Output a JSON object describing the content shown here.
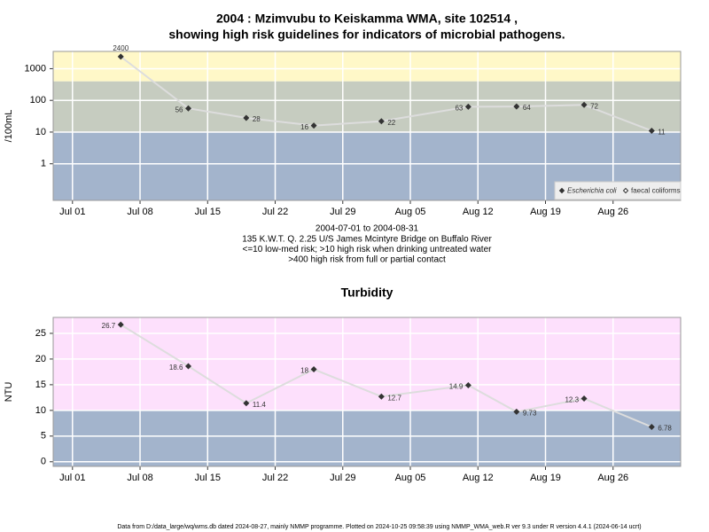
{
  "chart_data": [
    {
      "type": "line",
      "log_y": true,
      "title": [
        "2004 : Mzimvubu to Keiskamma WMA, site 102514 ,",
        "showing high risk guidelines for indicators of microbial pathogens."
      ],
      "ylabel": "/100mL",
      "notes": [
        "2004-07-01 to 2004-08-31",
        "135 K.W.T. Q. 2.25 U/S James Mcintyre Bridge on Buffalo River",
        "<=10 low-med risk; >10 high risk when drinking untreated water",
        ">400 high risk from full or partial contact"
      ],
      "x": [
        "2004-07-06",
        "2004-07-13",
        "2004-07-19",
        "2004-07-26",
        "2004-08-02",
        "2004-08-11",
        "2004-08-16",
        "2004-08-23",
        "2004-08-30"
      ],
      "series": [
        {
          "name": "Escherichia coli",
          "color": "#333333",
          "line_color": "#dddddd",
          "values": [
            2400,
            56,
            28,
            16,
            22,
            63,
            64,
            72,
            11
          ]
        },
        {
          "name": "faecal coliforms",
          "color": "#333333",
          "values": [
            null,
            null,
            null,
            null,
            null,
            null,
            null,
            null,
            null
          ]
        }
      ],
      "thresholds": [
        10,
        400
      ],
      "band_colors": [
        "#a3b4cc",
        "#c6ccc0",
        "#fff8c8"
      ],
      "xlim": [
        "2004-06-29",
        "2004-09-02"
      ],
      "xticks": [
        {
          "value": "2004-07-01",
          "label": "Jul 01"
        },
        {
          "value": "2004-07-08",
          "label": "Jul 08"
        },
        {
          "value": "2004-07-15",
          "label": "Jul 15"
        },
        {
          "value": "2004-07-22",
          "label": "Jul 22"
        },
        {
          "value": "2004-07-29",
          "label": "Jul 29"
        },
        {
          "value": "2004-08-05",
          "label": "Aug 05"
        },
        {
          "value": "2004-08-12",
          "label": "Aug 12"
        },
        {
          "value": "2004-08-19",
          "label": "Aug 19"
        },
        {
          "value": "2004-08-26",
          "label": "Aug 26"
        }
      ],
      "ylim": [
        0.07,
        3500
      ],
      "yticks": [
        1,
        10,
        100,
        1000
      ],
      "grid": true,
      "legend": "bottom-right"
    },
    {
      "type": "line",
      "log_y": false,
      "title": [
        "Turbidity"
      ],
      "ylabel": "NTU",
      "x": [
        "2004-07-06",
        "2004-07-13",
        "2004-07-19",
        "2004-07-26",
        "2004-08-02",
        "2004-08-11",
        "2004-08-16",
        "2004-08-23",
        "2004-08-30"
      ],
      "series": [
        {
          "color": "#333333",
          "line_color": "#dddddd",
          "values": [
            26.7,
            18.6,
            11.4,
            18,
            12.7,
            14.9,
            9.73,
            12.3,
            6.78
          ]
        }
      ],
      "thresholds": [
        10
      ],
      "band_colors": [
        "#a3b4cc",
        "#fde0fc"
      ],
      "xlim": [
        "2004-06-29",
        "2004-09-02"
      ],
      "xticks": [
        {
          "value": "2004-07-01",
          "label": "Jul 01"
        },
        {
          "value": "2004-07-08",
          "label": "Jul 08"
        },
        {
          "value": "2004-07-15",
          "label": "Jul 15"
        },
        {
          "value": "2004-07-22",
          "label": "Jul 22"
        },
        {
          "value": "2004-07-29",
          "label": "Jul 29"
        },
        {
          "value": "2004-08-05",
          "label": "Aug 05"
        },
        {
          "value": "2004-08-12",
          "label": "Aug 12"
        },
        {
          "value": "2004-08-19",
          "label": "Aug 19"
        },
        {
          "value": "2004-08-26",
          "label": "Aug 26"
        }
      ],
      "ylim": [
        -0.9,
        28.1
      ],
      "yticks": [
        0,
        5,
        10,
        15,
        20,
        25
      ],
      "grid": true
    }
  ],
  "footer": "Data from D:/data_large/wq/wms.db dated 2024-08-27, mainly NMMP programme. Plotted on 2024-10-25 09:58:39 using NMMP_WMA_web.R ver 9.3 under R version 4.4.1 (2024-06-14 ucrt)"
}
